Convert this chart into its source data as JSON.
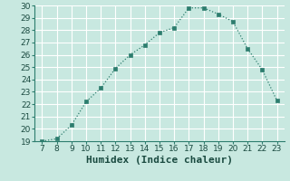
{
  "x": [
    7,
    8,
    9,
    10,
    11,
    12,
    13,
    14,
    15,
    16,
    17,
    18,
    19,
    20,
    21,
    22,
    23
  ],
  "y": [
    19.0,
    19.2,
    20.3,
    22.2,
    23.3,
    24.9,
    26.0,
    26.8,
    27.8,
    28.2,
    29.8,
    29.8,
    29.3,
    28.7,
    26.5,
    24.8,
    22.3
  ],
  "xlabel": "Humidex (Indice chaleur)",
  "xlim": [
    6.5,
    23.5
  ],
  "ylim": [
    19,
    30
  ],
  "yticks": [
    19,
    20,
    21,
    22,
    23,
    24,
    25,
    26,
    27,
    28,
    29,
    30
  ],
  "xticks": [
    7,
    8,
    9,
    10,
    11,
    12,
    13,
    14,
    15,
    16,
    17,
    18,
    19,
    20,
    21,
    22,
    23
  ],
  "line_color": "#2d7d6e",
  "marker_color": "#2d7d6e",
  "bg_color": "#c8e8e0",
  "grid_color": "#ffffff",
  "tick_label_fontsize": 6.5,
  "xlabel_fontsize": 8.0,
  "border_color": "#2d7d6e"
}
